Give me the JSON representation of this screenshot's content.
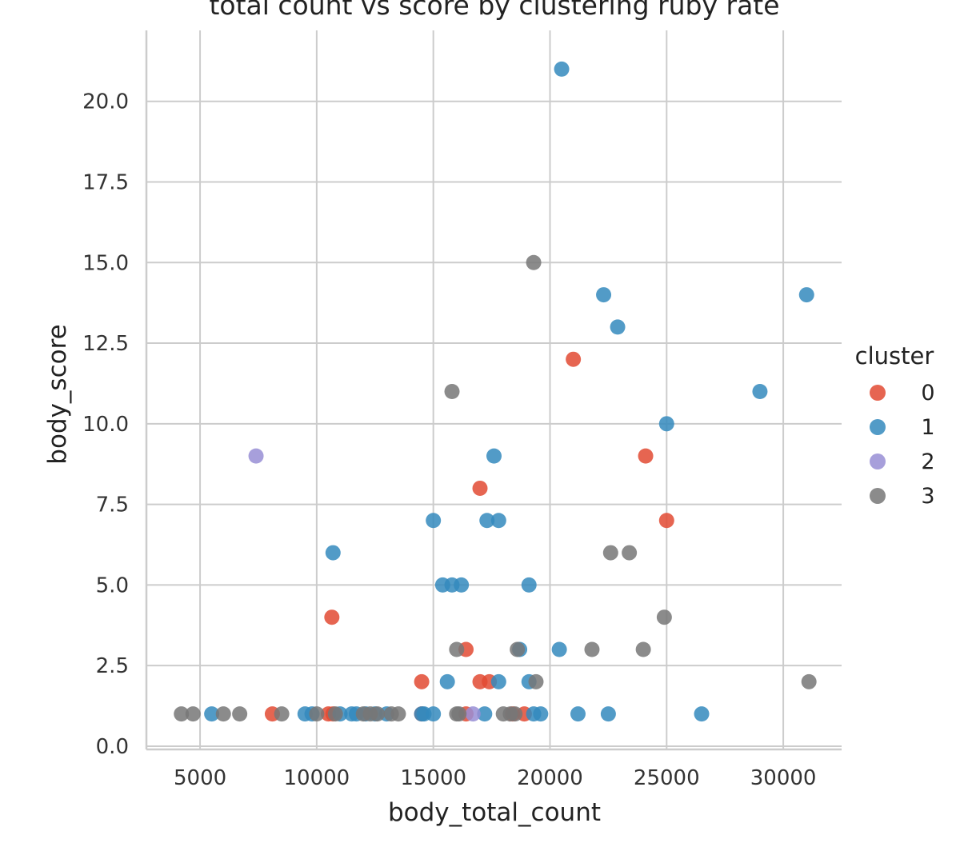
{
  "chart_data": {
    "type": "scatter",
    "title": "total count vs score by clustering ruby rate",
    "xlabel": "body_total_count",
    "ylabel": "body_score",
    "xlim": [
      2700,
      32500
    ],
    "ylim": [
      -0.1,
      22.2
    ],
    "x_ticks": [
      5000,
      10000,
      15000,
      20000,
      25000,
      30000
    ],
    "x_tick_labels": [
      "5000",
      "10000",
      "15000",
      "20000",
      "25000",
      "30000"
    ],
    "y_ticks": [
      0,
      2.5,
      5,
      7.5,
      10,
      12.5,
      15,
      17.5,
      20
    ],
    "y_tick_labels": [
      "0.0",
      "2.5",
      "5.0",
      "7.5",
      "10.0",
      "12.5",
      "15.0",
      "17.5",
      "20.0"
    ],
    "grid": true,
    "legend": {
      "title": "cluster",
      "placement": "right"
    },
    "series": [
      {
        "name": "0",
        "color": "#e24a33",
        "points": [
          [
            8100,
            1
          ],
          [
            10500,
            1
          ],
          [
            10700,
            1
          ],
          [
            10650,
            4
          ],
          [
            14500,
            2
          ],
          [
            14500,
            1
          ],
          [
            16400,
            3
          ],
          [
            16400,
            1
          ],
          [
            17000,
            8
          ],
          [
            17000,
            2
          ],
          [
            17400,
            2
          ],
          [
            18400,
            1
          ],
          [
            18900,
            1
          ],
          [
            21000,
            12
          ],
          [
            24100,
            9
          ],
          [
            25000,
            7
          ]
        ]
      },
      {
        "name": "1",
        "color": "#348abd",
        "points": [
          [
            5500,
            1
          ],
          [
            9500,
            1
          ],
          [
            9800,
            1
          ],
          [
            10700,
            6
          ],
          [
            11000,
            1
          ],
          [
            11500,
            1
          ],
          [
            11700,
            1
          ],
          [
            12100,
            1
          ],
          [
            12500,
            1
          ],
          [
            13000,
            1
          ],
          [
            14500,
            1
          ],
          [
            14600,
            1
          ],
          [
            15000,
            1
          ],
          [
            15000,
            7
          ],
          [
            15400,
            5
          ],
          [
            15800,
            5
          ],
          [
            16200,
            5
          ],
          [
            15600,
            2
          ],
          [
            17200,
            1
          ],
          [
            17300,
            7
          ],
          [
            17600,
            9
          ],
          [
            17800,
            7
          ],
          [
            17800,
            2
          ],
          [
            18700,
            3
          ],
          [
            19100,
            5
          ],
          [
            19100,
            2
          ],
          [
            19300,
            1
          ],
          [
            19600,
            1
          ],
          [
            20400,
            3
          ],
          [
            20500,
            21
          ],
          [
            21200,
            1
          ],
          [
            22300,
            14
          ],
          [
            22500,
            1
          ],
          [
            22900,
            13
          ],
          [
            25000,
            10
          ],
          [
            26500,
            1
          ],
          [
            29000,
            11
          ],
          [
            31000,
            14
          ]
        ]
      },
      {
        "name": "2",
        "color": "#988ed5",
        "points": [
          [
            7400,
            9
          ],
          [
            16700,
            1
          ]
        ]
      },
      {
        "name": "3",
        "color": "#777777",
        "points": [
          [
            4200,
            1
          ],
          [
            4700,
            1
          ],
          [
            6000,
            1
          ],
          [
            6700,
            1
          ],
          [
            8500,
            1
          ],
          [
            10000,
            1
          ],
          [
            10800,
            1
          ],
          [
            12000,
            1
          ],
          [
            12300,
            1
          ],
          [
            12600,
            1
          ],
          [
            13200,
            1
          ],
          [
            13500,
            1
          ],
          [
            15800,
            11
          ],
          [
            16000,
            1
          ],
          [
            16100,
            1
          ],
          [
            16000,
            3
          ],
          [
            18000,
            1
          ],
          [
            18300,
            1
          ],
          [
            18500,
            1
          ],
          [
            18600,
            3
          ],
          [
            19300,
            15
          ],
          [
            19400,
            2
          ],
          [
            21800,
            3
          ],
          [
            22600,
            6
          ],
          [
            23400,
            6
          ],
          [
            24000,
            3
          ],
          [
            24900,
            4
          ],
          [
            31100,
            2
          ]
        ]
      }
    ]
  }
}
